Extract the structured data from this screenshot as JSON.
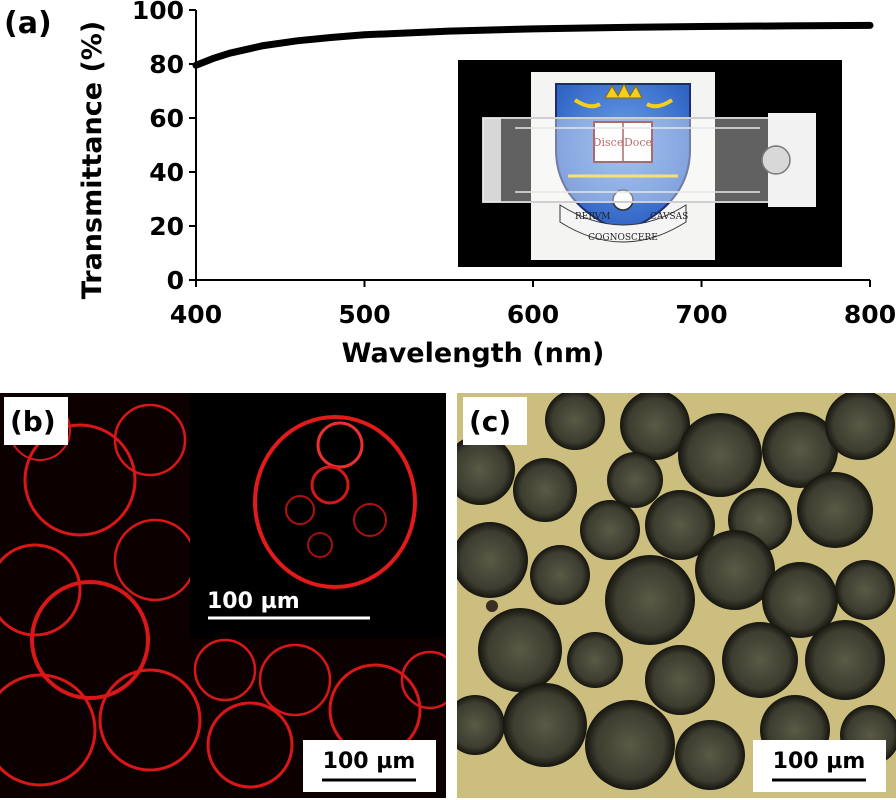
{
  "panels": {
    "a_label": "(a)",
    "b_label": "(b)",
    "c_label": "(c)"
  },
  "chart_data": {
    "type": "line",
    "title": "",
    "xlabel": "Wavelength (nm)",
    "ylabel": "Transmittance (%)",
    "xlim": [
      400,
      800
    ],
    "ylim": [
      0,
      100
    ],
    "xticks": [
      400,
      500,
      600,
      700,
      800
    ],
    "yticks": [
      0,
      20,
      40,
      60,
      80,
      100
    ],
    "grid": false,
    "series": [
      {
        "color": "#000000",
        "x": [
          400,
          410,
          420,
          440,
          460,
          480,
          500,
          550,
          600,
          650,
          700,
          750,
          800
        ],
        "y": [
          79.5,
          82.0,
          84.0,
          86.8,
          88.6,
          89.8,
          90.8,
          92.2,
          93.0,
          93.5,
          93.9,
          94.1,
          94.3
        ]
      }
    ]
  },
  "inset_photo": {
    "motto_left": "Disce",
    "motto_right": "Doce",
    "scroll_text_1": "RERVM",
    "scroll_text_2": "COGNOSCERE",
    "scroll_text_3": "CAVSAS"
  },
  "panel_b": {
    "inset_scale_label": "100 µm",
    "scale_label": "100 µm",
    "color": "#d81818"
  },
  "panel_c": {
    "scale_label": "100 µm",
    "background_color": "#cbbe7e"
  }
}
